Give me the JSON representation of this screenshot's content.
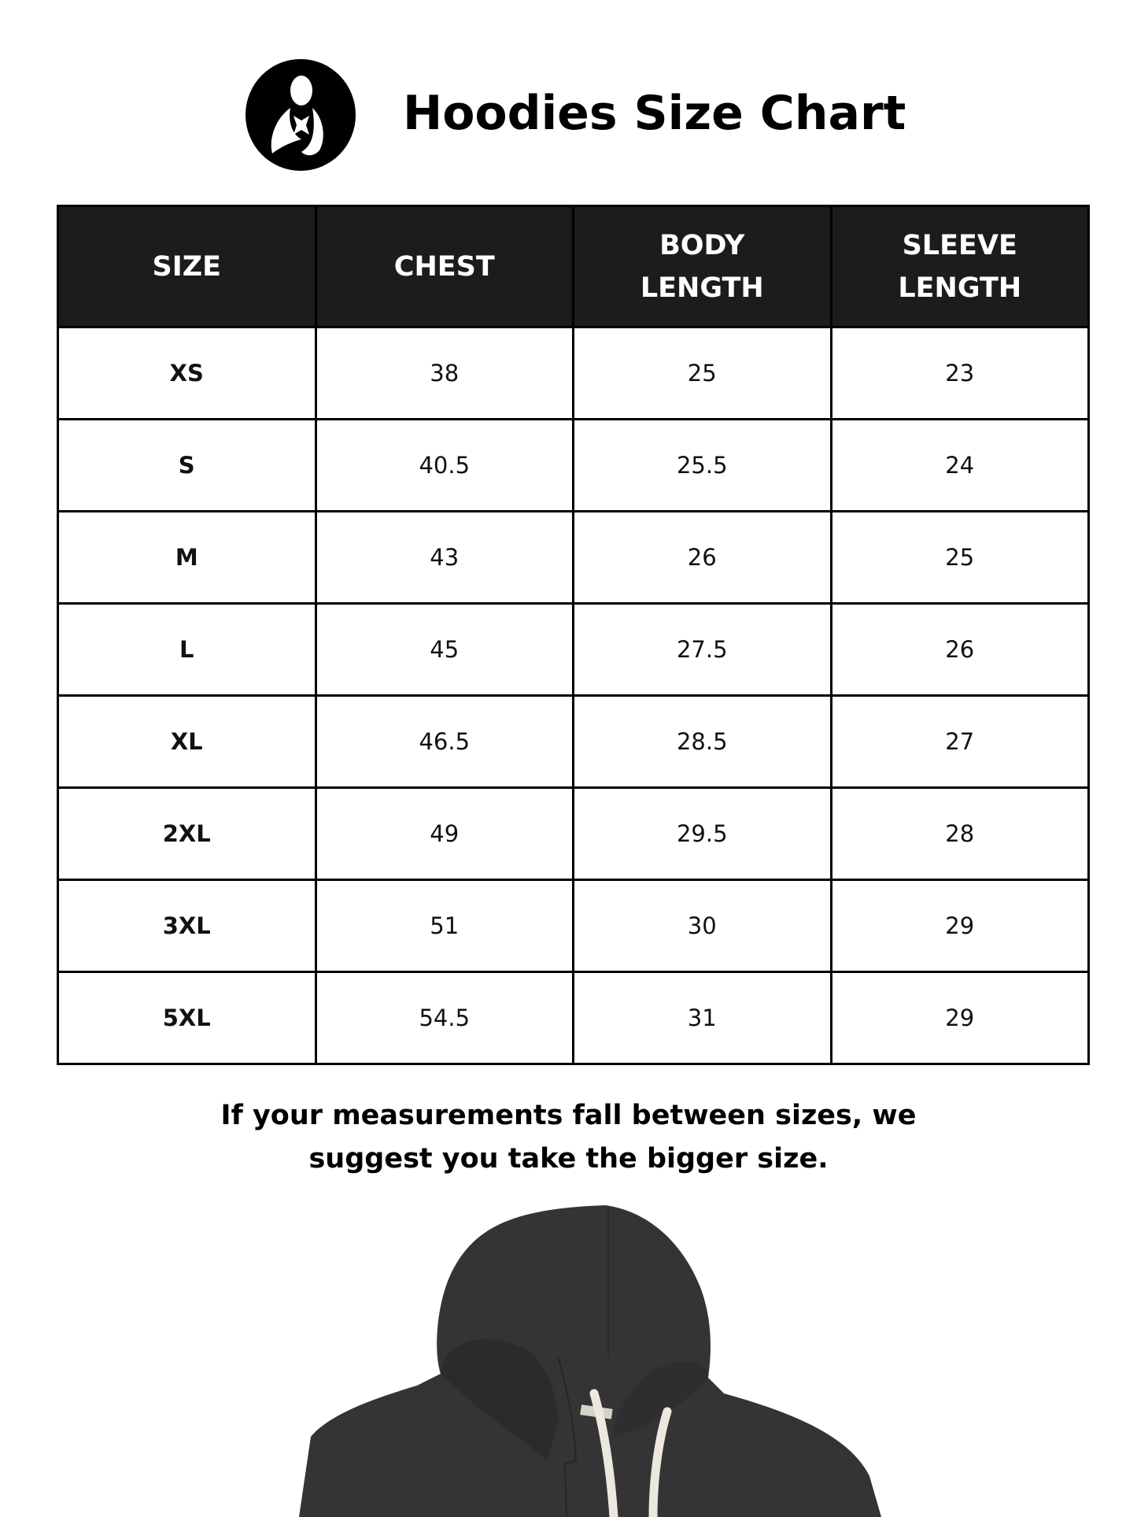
{
  "header": {
    "title": "Hoodies Size Chart",
    "logo_icon": "mother-and-child-logo-icon"
  },
  "table": {
    "columns": [
      "SIZE",
      "CHEST",
      "BODY LENGTH",
      "SLEEVE LENGTH"
    ],
    "rows": [
      [
        "XS",
        "38",
        "25",
        "23"
      ],
      [
        "S",
        "40.5",
        "25.5",
        "24"
      ],
      [
        "M",
        "43",
        "26",
        "25"
      ],
      [
        "L",
        "45",
        "27.5",
        "26"
      ],
      [
        "XL",
        "46.5",
        "28.5",
        "27"
      ],
      [
        "2XL",
        "49",
        "29.5",
        "28"
      ],
      [
        "3XL",
        "51",
        "30",
        "29"
      ],
      [
        "5XL",
        "54.5",
        "31",
        "29"
      ]
    ]
  },
  "note": {
    "line1": "If your measurements fall between sizes, we",
    "line2": "suggest you take the bigger size."
  },
  "colors": {
    "header_bg": "#1c1c1c",
    "hoodie": "#333333",
    "drawstring": "#ece8df"
  }
}
